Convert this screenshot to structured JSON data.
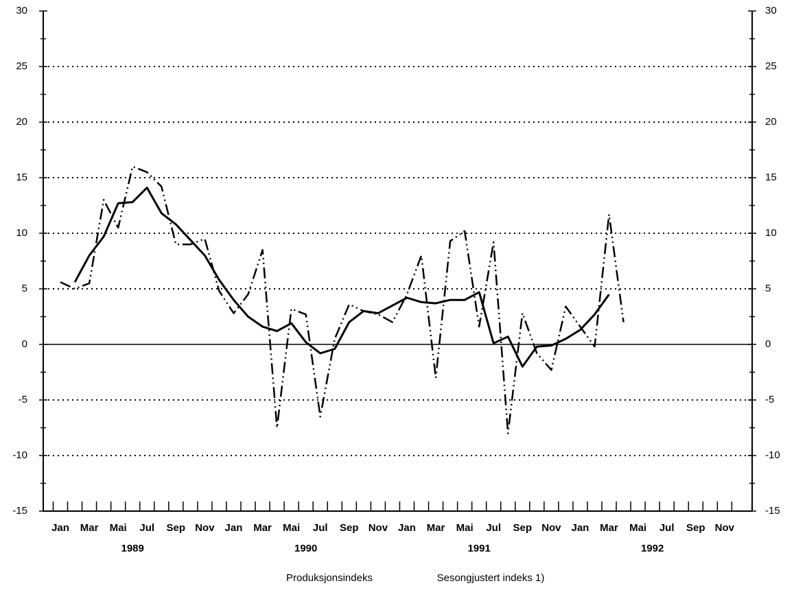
{
  "chart_data": {
    "type": "line",
    "categories": [
      "Jan",
      null,
      "Mar",
      null,
      "Mai",
      null,
      "Jul",
      null,
      "Sep",
      null,
      "Nov",
      null,
      "Jan",
      null,
      "Mar",
      null,
      "Mai",
      null,
      "Jul",
      null,
      "Sep",
      null,
      "Nov",
      null,
      "Jan",
      null,
      "Mar",
      null,
      "Mai",
      null,
      "Jul",
      null,
      "Sep",
      null,
      "Nov",
      null,
      "Jan",
      null,
      "Mar",
      null,
      "Mai",
      null,
      "Jul",
      null,
      "Sep",
      null,
      "Nov",
      null
    ],
    "years": [
      "1989",
      "1990",
      "1991",
      "1992"
    ],
    "series": [
      {
        "name": "Produksjonsindeks",
        "color": "#000000",
        "line_style": "dash-dot",
        "values": [
          5.6,
          5.0,
          5.5,
          13.0,
          10.5,
          16.0,
          15.5,
          14.2,
          9.0,
          9.0,
          9.5,
          4.8,
          2.8,
          4.5,
          8.5,
          -7.5,
          3.2,
          2.7,
          -6.5,
          0.5,
          3.6,
          3.0,
          2.7,
          2.0,
          4.5,
          8.0,
          -3.0,
          9.3,
          10.2,
          1.6,
          9.2,
          -8.0,
          2.8,
          -0.8,
          -2.3,
          3.4,
          1.6,
          -0.2,
          11.7,
          2.0,
          null,
          null,
          null,
          null,
          null,
          null,
          null,
          null
        ]
      },
      {
        "name": "Sesongjustert indeks 1)",
        "color": "#000000",
        "line_style": "solid",
        "values": [
          null,
          5.6,
          8.0,
          9.7,
          12.7,
          12.8,
          14.1,
          11.8,
          10.8,
          9.4,
          8.0,
          5.8,
          4.0,
          2.5,
          1.6,
          1.2,
          1.9,
          0.2,
          -0.8,
          -0.4,
          2.0,
          3.0,
          2.8,
          3.5,
          4.2,
          3.8,
          3.7,
          4.0,
          4.0,
          4.7,
          0.1,
          0.7,
          -2.0,
          -0.2,
          -0.1,
          0.5,
          1.3,
          2.7,
          4.5,
          null,
          null,
          null,
          null,
          null,
          null,
          null,
          null,
          null
        ]
      }
    ],
    "ylim": [
      -15,
      30
    ],
    "yticks": [
      -15,
      -10,
      -5,
      0,
      5,
      10,
      15,
      20,
      25,
      30
    ],
    "y2lim": [
      -15,
      30
    ],
    "y2ticks": [
      -15,
      -10,
      -5,
      0,
      5,
      10,
      15,
      20,
      25,
      30
    ],
    "grid": true
  }
}
